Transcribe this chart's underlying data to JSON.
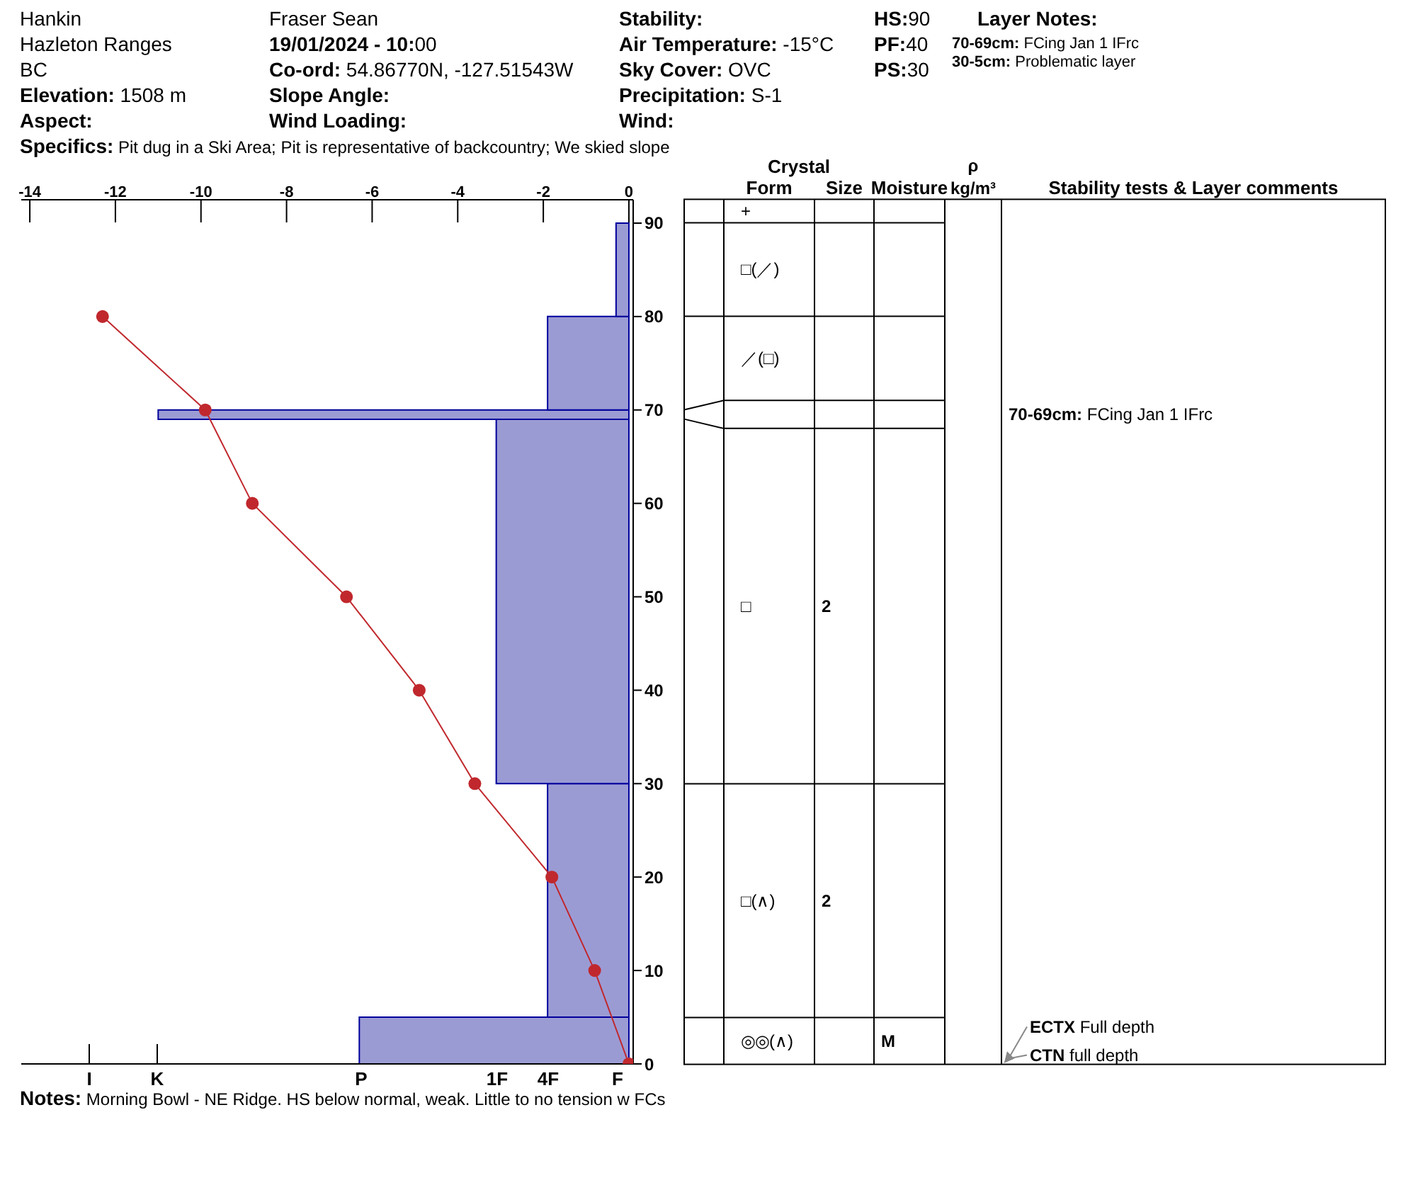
{
  "chart_data": [
    {
      "type": "histogram",
      "orientation": "horizontal",
      "marker": "circle",
      "xlim": [
        -14.2,
        0.1
      ],
      "xticks": [
        -14,
        -12,
        -10,
        -8,
        -6,
        -4,
        -2,
        0
      ],
      "ylim": [
        0,
        92.5
      ],
      "yticks": [
        0,
        10,
        20,
        30,
        40,
        50,
        60,
        70,
        80,
        90
      ],
      "series": [
        {
          "type": "histogram",
          "color": "#9b9bd4",
          "bins": [
            0,
            5,
            30,
            69,
            70,
            80,
            90
          ],
          "values": [
            -6.3,
            -1.9,
            -3.1,
            -11.0,
            -1.9,
            -0.3
          ]
        },
        {
          "type": "line",
          "color": "#c0282d",
          "x": [
            0,
            10,
            20,
            30,
            40,
            50,
            60,
            70,
            80
          ],
          "values": [
            0,
            -0.8,
            -1.8,
            -3.6,
            -4.9,
            -6.6,
            -8.8,
            -9.9,
            -12.3
          ]
        }
      ],
      "annotations": [
        "Hankin",
        "Hazleton Ranges",
        "BC",
        "Elevation: 1508 m",
        "Aspect:",
        "Fraser Sean",
        "19/01/2024 - 10:00",
        "Co-ord: 54.86770N, -127.51543W",
        "Slope Angle:",
        "Wind Loading:",
        "Stability:",
        "Air Temperature: -15°C",
        "Sky Cover: OVC",
        "Precipitation: S-1",
        "Wind:",
        "HS:90",
        "PF:40",
        "PS:30",
        "Layer Notes:",
        "70-69cm: FCing Jan 1 IFrc",
        "30-5cm: Problematic layer",
        "Specifics: Pit dug in a Ski Area; Pit is representative of backcountry; We skied slope",
        "Notes: Morning Bowl - NE Ridge. HS below normal, weak. Little to no tension w FCs",
        "I",
        "K",
        "P",
        "1F",
        "4F",
        "F"
      ]
    },
    {
      "type": "other",
      "title": "Crystal",
      "categories": [
        "Form",
        "Size",
        "Moisture",
        "ρ kg/m³",
        "Stability tests & Layer comments"
      ],
      "y_categories": [
        null,
        null,
        null,
        null,
        null,
        null,
        null
      ],
      "cell_labels": [
        [
          "+",
          null,
          null,
          null,
          null
        ],
        [
          "□(／)",
          null,
          null,
          null,
          null
        ],
        [
          "／(□)",
          null,
          null,
          null,
          null
        ],
        [
          null,
          null,
          null,
          null,
          "70-69cm: FCing Jan 1 IFrc"
        ],
        [
          "□",
          "2",
          null,
          null,
          null
        ],
        [
          "□(∧)",
          "2",
          null,
          null,
          null
        ],
        [
          "◎◎(∧)",
          null,
          "M",
          null,
          "ECTX Full depth\nCTN full depth"
        ]
      ]
    }
  ]
}
